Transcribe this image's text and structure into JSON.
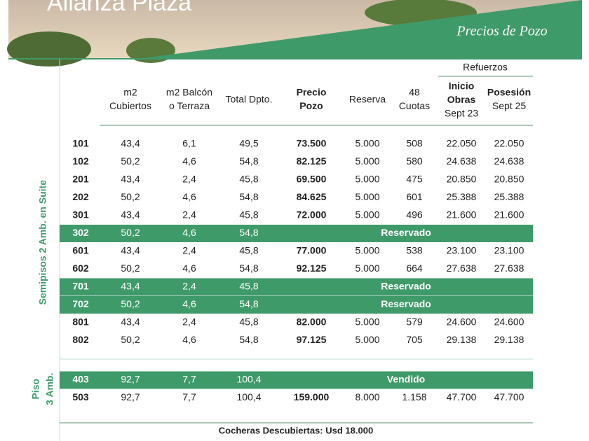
{
  "header": {
    "title": "Alianza Plaza",
    "subtitle": "Precios de Pozo"
  },
  "table": {
    "group_header": "Refuerzos",
    "columns": [
      [
        "m2",
        "Cubiertos"
      ],
      [
        "m2 Balcón",
        "o Terraza"
      ],
      [
        "Total Dpto."
      ],
      [
        "Precio",
        "Pozo"
      ],
      [
        "Reserva"
      ],
      [
        "48",
        "Cuotas"
      ],
      [
        "Inicio",
        "Obras",
        "Sept 23"
      ],
      [
        "Posesión",
        "Sept 25"
      ]
    ],
    "groups": [
      {
        "label": [
          "Semipisos 2 Amb. en Suite"
        ],
        "rows": [
          [
            "101",
            "43,4",
            "6,1",
            "49,5",
            "73.500",
            "5.000",
            "508",
            "22.050",
            "22.050"
          ],
          [
            "102",
            "50,2",
            "4,6",
            "54,8",
            "82.125",
            "5.000",
            "580",
            "24.638",
            "24.638"
          ],
          [
            "201",
            "43,4",
            "2,4",
            "45,8",
            "69.500",
            "5.000",
            "475",
            "20.850",
            "20.850"
          ],
          [
            "202",
            "50,2",
            "4,6",
            "54,8",
            "84.625",
            "5.000",
            "601",
            "25.388",
            "25.388"
          ],
          [
            "301",
            "43,4",
            "2,4",
            "45,8",
            "72.000",
            "5.000",
            "496",
            "21.600",
            "21.600"
          ],
          [
            "302",
            "50,2",
            "4,6",
            "54,8",
            "Reservado"
          ],
          [
            "601",
            "43,4",
            "2,4",
            "45,8",
            "77.000",
            "5.000",
            "538",
            "23.100",
            "23.100"
          ],
          [
            "602",
            "50,2",
            "4,6",
            "54,8",
            "92.125",
            "5.000",
            "664",
            "27.638",
            "27.638"
          ],
          [
            "701",
            "43,4",
            "2,4",
            "45,8",
            "Reservado"
          ],
          [
            "702",
            "50,2",
            "4,6",
            "54,8",
            "Reservado"
          ],
          [
            "801",
            "43,4",
            "2,4",
            "45,8",
            "82.000",
            "5.000",
            "579",
            "24.600",
            "24.600"
          ],
          [
            "802",
            "50,2",
            "4,6",
            "54,8",
            "97.125",
            "5.000",
            "705",
            "29.138",
            "29.138"
          ]
        ]
      },
      {
        "label": [
          "Piso",
          "3 Amb."
        ],
        "rows": [
          [
            "403",
            "92,7",
            "7,7",
            "100,4",
            "Vendido"
          ],
          [
            "503",
            "92,7",
            "7,7",
            "100,4",
            "159.000",
            "8.000",
            "1.158",
            "47.700",
            "47.700"
          ]
        ]
      }
    ]
  },
  "footer": "Cocheras Descubiertas: Usd 18.000"
}
